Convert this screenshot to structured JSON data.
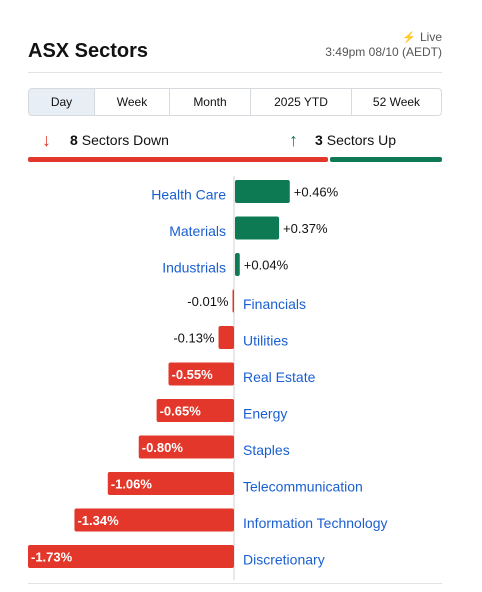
{
  "header": {
    "title": "ASX Sectors",
    "live_label": "Live",
    "timestamp": "3:49pm 08/10 (AEDT)"
  },
  "tabs": [
    {
      "label": "Day",
      "active": true
    },
    {
      "label": "Week",
      "active": false
    },
    {
      "label": "Month",
      "active": false
    },
    {
      "label": "2025 YTD",
      "active": false
    },
    {
      "label": "52 Week",
      "active": false
    }
  ],
  "summary": {
    "down_count": "8",
    "down_text": "Sectors Down",
    "up_count": "3",
    "up_text": "Sectors Up"
  },
  "colors": {
    "positive": "#0e7a54",
    "negative": "#e2372a",
    "label": "#1a5fd0"
  },
  "chart_data": {
    "type": "bar",
    "orientation": "horizontal",
    "categories": [
      "Health Care",
      "Materials",
      "Industrials",
      "Financials",
      "Utilities",
      "Real Estate",
      "Energy",
      "Staples",
      "Telecommunication",
      "Information Technology",
      "Discretionary"
    ],
    "values": [
      0.46,
      0.37,
      0.04,
      -0.01,
      -0.13,
      -0.55,
      -0.65,
      -0.8,
      -1.06,
      -1.34,
      -1.73
    ],
    "value_labels": [
      "+0.46%",
      "+0.37%",
      "+0.04%",
      "-0.01%",
      "-0.13%",
      "-0.55%",
      "-0.65%",
      "-0.80%",
      "-1.06%",
      "-1.34%",
      "-1.73%"
    ],
    "title": "",
    "xlabel": "",
    "ylabel": ""
  }
}
